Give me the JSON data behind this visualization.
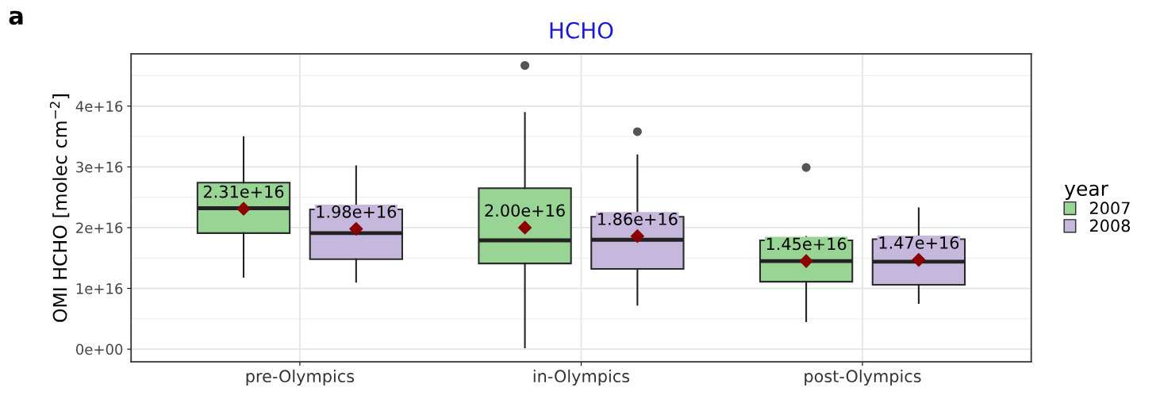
{
  "chart_data": {
    "type": "box",
    "title": "HCHO",
    "ylabel": "OMI HCHO [molec cm$^{−2}$]",
    "legend_title": "year",
    "legend": "right",
    "annotations": [
      "a"
    ],
    "categories": [
      "pre-Olympics",
      "in-Olympics",
      "post-Olympics"
    ],
    "ylim": [
      -2100000000000000.0,
      4.86e+16
    ],
    "yticks": [
      {
        "value": 0,
        "label": "0e+00"
      },
      {
        "value": 1e+16,
        "label": "1e+16"
      },
      {
        "value": 2e+16,
        "label": "2e+16"
      },
      {
        "value": 3e+16,
        "label": "3e+16"
      },
      {
        "value": 4e+16,
        "label": "4e+16"
      }
    ],
    "grid": true,
    "marker": "diamond",
    "series": [
      {
        "name": "2007",
        "color": "#98d594",
        "value_labels": [
          "2.31e+16",
          "2.00e+16",
          "1.45e+16"
        ],
        "boxes": [
          {
            "low": 1.19e+16,
            "q1": 1.91e+16,
            "median": 2.32e+16,
            "q3": 2.74e+16,
            "high": 3.49e+16,
            "mean": 2.31e+16
          },
          {
            "low": 300000000000000.0,
            "q1": 1.41e+16,
            "median": 1.79e+16,
            "q3": 2.65e+16,
            "high": 3.89e+16,
            "mean": 2e+16,
            "outliers": [
              4.67e+16
            ]
          },
          {
            "low": 4600000000000000.0,
            "q1": 1.11e+16,
            "median": 1.45e+16,
            "q3": 1.79e+16,
            "high": 1.85e+16,
            "mean": 1.45e+16,
            "outliers": [
              2.99e+16
            ]
          }
        ]
      },
      {
        "name": "2008",
        "color": "#c5b8dc",
        "value_labels": [
          "1.98e+16",
          "1.86e+16",
          "1.47e+16"
        ],
        "boxes": [
          {
            "low": 1.11e+16,
            "q1": 1.48e+16,
            "median": 1.91e+16,
            "q3": 2.3e+16,
            "high": 3.01e+16,
            "mean": 1.98e+16
          },
          {
            "low": 7300000000000000.0,
            "q1": 1.32e+16,
            "median": 1.8e+16,
            "q3": 2.18e+16,
            "high": 3.19e+16,
            "mean": 1.86e+16,
            "outliers": [
              3.58e+16
            ]
          },
          {
            "low": 7600000000000000.0,
            "q1": 1.06e+16,
            "median": 1.44e+16,
            "q3": 1.81e+16,
            "high": 2.32e+16,
            "mean": 1.47e+16
          }
        ]
      }
    ]
  }
}
